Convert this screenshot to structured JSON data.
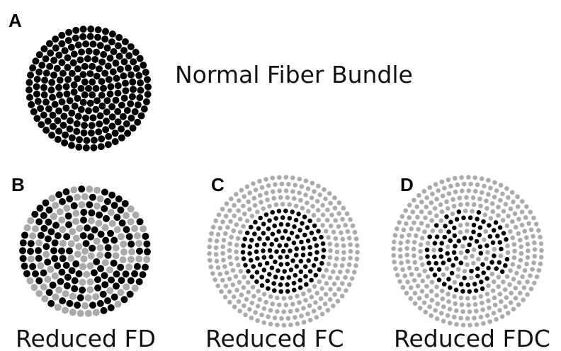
{
  "panels": [
    {
      "letter": "A",
      "label": "Normal Fiber Bundle"
    },
    {
      "letter": "B",
      "label": "Reduced FD"
    },
    {
      "letter": "C",
      "label": "Reduced FC"
    },
    {
      "letter": "D",
      "label": "Reduced FDC"
    }
  ]
}
